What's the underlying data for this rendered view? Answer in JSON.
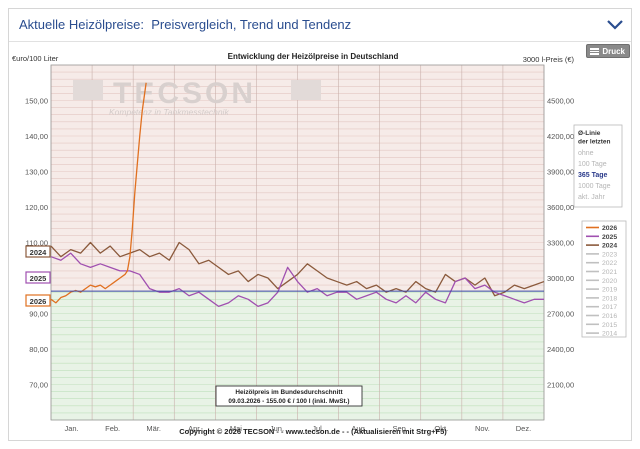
{
  "header": {
    "title": "Aktuelle Heizölpreise:  Preisvergleich, Trend und Tendenz",
    "collapse_icon": "chevron-down-icon"
  },
  "toolbar": {
    "print_label": "Druck",
    "print_icon": "print-icon"
  },
  "chart_data": {
    "type": "line",
    "title": "Entwicklung der Heizölpreise in Deutschland",
    "ylabel_left": "€uro/100 Liter",
    "ylabel_right": "3000 l-Preis (€)",
    "y_ticks_left": [
      "150,00",
      "140,00",
      "130,00",
      "120,00",
      "110,00",
      "100,00",
      "90,00",
      "80,00",
      "70,00"
    ],
    "y_ticks_right": [
      "4500,00",
      "4200,00",
      "3900,00",
      "3600,00",
      "3300,00",
      "3000,00",
      "2700,00",
      "2400,00",
      "2100,00"
    ],
    "x_ticks": [
      "Jan.",
      "Feb.",
      "Mär.",
      "Apr.",
      "Mai",
      "Jun.",
      "Jul.",
      "Aug.",
      "Sep.",
      "Okt.",
      "Nov.",
      "Dez."
    ],
    "ylim": [
      60,
      160
    ],
    "average_line": {
      "value": 96.3,
      "color": "#3c4aa8"
    },
    "background_split": 96.3,
    "watermark": {
      "logo": "TECSON",
      "tagline": "Kompetenz in Tankmesstechnik"
    },
    "series": [
      {
        "name": "2026",
        "color": "#e07020",
        "x": [
          0,
          0.01,
          0.02,
          0.03,
          0.04,
          0.05,
          0.06,
          0.07,
          0.08,
          0.09,
          0.1,
          0.11,
          0.12,
          0.13,
          0.14,
          0.15,
          0.155,
          0.16,
          0.165,
          0.17,
          0.175,
          0.18,
          0.185,
          0.19,
          0.193
        ],
        "values": [
          94,
          93,
          94.5,
          95,
          96,
          96.5,
          96,
          97,
          98,
          97.5,
          98,
          97,
          98,
          99,
          100,
          101,
          102,
          106,
          114,
          124,
          132,
          140,
          147,
          152,
          155
        ]
      },
      {
        "name": "2025",
        "color": "#a050b0",
        "x": [
          0,
          0.02,
          0.04,
          0.06,
          0.08,
          0.1,
          0.12,
          0.14,
          0.16,
          0.18,
          0.2,
          0.22,
          0.24,
          0.26,
          0.28,
          0.3,
          0.32,
          0.34,
          0.36,
          0.38,
          0.4,
          0.42,
          0.44,
          0.46,
          0.48,
          0.5,
          0.52,
          0.54,
          0.56,
          0.58,
          0.6,
          0.62,
          0.64,
          0.66,
          0.68,
          0.7,
          0.72,
          0.74,
          0.76,
          0.78,
          0.8,
          0.82,
          0.84,
          0.86,
          0.88,
          0.9,
          0.92,
          0.94,
          0.96,
          0.98,
          1.0
        ],
        "values": [
          106,
          105,
          107,
          104,
          103,
          104,
          103,
          102,
          102,
          101,
          97,
          96,
          96,
          97,
          95,
          96,
          94,
          92,
          93,
          95,
          94,
          92,
          93,
          96,
          103,
          99,
          96,
          97,
          95,
          96,
          96,
          94,
          95,
          96,
          94,
          93,
          95,
          93,
          96,
          94,
          93,
          99,
          100,
          97,
          98,
          96,
          95,
          94,
          93,
          94,
          94
        ]
      },
      {
        "name": "2024",
        "color": "#8b5a3c",
        "x": [
          0,
          0.02,
          0.04,
          0.06,
          0.08,
          0.1,
          0.12,
          0.14,
          0.16,
          0.18,
          0.2,
          0.22,
          0.24,
          0.26,
          0.28,
          0.3,
          0.32,
          0.34,
          0.36,
          0.38,
          0.4,
          0.42,
          0.44,
          0.46,
          0.48,
          0.5,
          0.52,
          0.54,
          0.56,
          0.58,
          0.6,
          0.62,
          0.64,
          0.66,
          0.68,
          0.7,
          0.72,
          0.74,
          0.76,
          0.78,
          0.8,
          0.82,
          0.84,
          0.86,
          0.88,
          0.9,
          0.92,
          0.94,
          0.96,
          0.98,
          1.0
        ],
        "values": [
          109,
          106,
          108,
          107,
          110,
          107,
          109,
          106,
          107,
          108,
          106,
          107,
          105,
          110,
          108,
          104,
          105,
          103,
          101,
          102,
          99,
          101,
          100,
          97,
          99,
          101,
          104,
          102,
          100,
          99,
          98,
          99,
          97,
          98,
          96,
          97,
          96,
          99,
          97,
          96,
          101,
          99,
          100,
          98,
          100,
          95,
          96,
          98,
          97,
          98,
          99
        ]
      }
    ],
    "series_markers": [
      "2024",
      "2025",
      "2026"
    ],
    "legend_years": [
      {
        "name": "2026",
        "color": "#e07020",
        "active": true
      },
      {
        "name": "2025",
        "color": "#a050b0",
        "active": true
      },
      {
        "name": "2024",
        "color": "#8b5a3c",
        "active": true
      },
      {
        "name": "2023",
        "color": "#c0c0c0",
        "active": false
      },
      {
        "name": "2022",
        "color": "#c0c0c0",
        "active": false
      },
      {
        "name": "2021",
        "color": "#c0c0c0",
        "active": false
      },
      {
        "name": "2020",
        "color": "#c0c0c0",
        "active": false
      },
      {
        "name": "2019",
        "color": "#c0c0c0",
        "active": false
      },
      {
        "name": "2018",
        "color": "#c0c0c0",
        "active": false
      },
      {
        "name": "2017",
        "color": "#c0c0c0",
        "active": false
      },
      {
        "name": "2016",
        "color": "#c0c0c0",
        "active": false
      },
      {
        "name": "2015",
        "color": "#c0c0c0",
        "active": false
      },
      {
        "name": "2014",
        "color": "#c0c0c0",
        "active": false
      }
    ],
    "avg_panel": {
      "title_lines": [
        "Ø-Linie",
        "der letzten"
      ],
      "options": [
        {
          "label": "ohne",
          "active": false
        },
        {
          "label": "100 Tage",
          "active": false
        },
        {
          "label": "365 Tage",
          "active": true
        },
        {
          "label": "1000 Tage",
          "active": false
        },
        {
          "label": "akt. Jahr",
          "active": false
        }
      ]
    },
    "annotation": {
      "line1": "Heizölpreis im Bundesdurchschnitt",
      "line2": "09.03.2026 - 155.00 € / 100 l (inkl. MwSt.)"
    },
    "footer": "Copyright © 2026 TECSON - - www.tecson.de - - (Aktualisieren mit Strg+F5)"
  }
}
